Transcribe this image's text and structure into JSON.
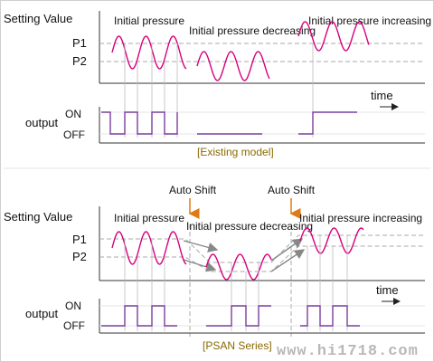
{
  "top": {
    "setting_value": "Setting  Value",
    "p1": "P1",
    "p2": "P2",
    "initial_pressure": "Initial pressure",
    "initial_pressure_decreasing": "Initial pressure decreasing",
    "initial_pressure_increasing": "Initial pressure increasing",
    "time": "time",
    "output": "output",
    "on": "ON",
    "off": "OFF",
    "caption": "[Existing model]"
  },
  "bottom": {
    "setting_value": "Setting  Value",
    "p1": "P1",
    "p2": "P2",
    "auto_shift_1": "Auto Shift",
    "auto_shift_2": "Auto Shift",
    "initial_pressure": "Initial pressure",
    "initial_pressure_decreasing": "Initial pressure decreasing",
    "initial_pressure_increasing": "Initial pressure increasing",
    "time": "time",
    "output": "output",
    "on": "ON",
    "off": "OFF",
    "caption": "[PSAN Series]"
  },
  "watermark": "www.hi1718.com",
  "colors": {
    "wave": "#d6007f",
    "output": "#7a3fa0",
    "arrow": "#e07a14",
    "gray": "#9a9a9a",
    "caption": "#8a6a00",
    "watermark": "#b8b8b8"
  }
}
